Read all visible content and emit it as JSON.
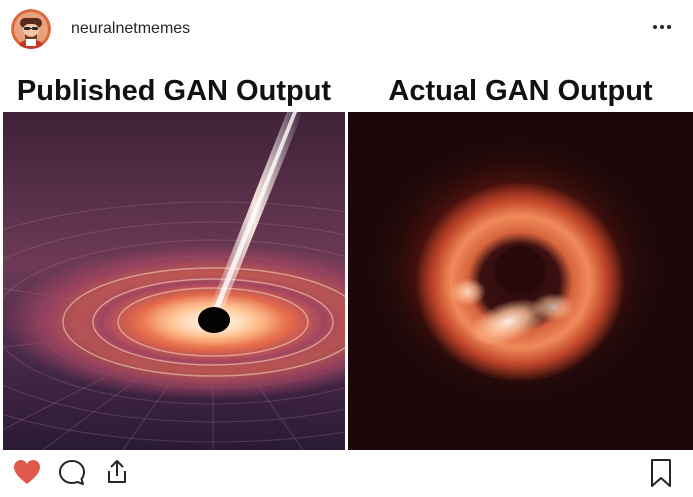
{
  "post": {
    "username": "neuralnetmemes"
  },
  "meme": {
    "left_caption": "Published GAN Output",
    "right_caption": "Actual GAN Output"
  },
  "icons": {
    "like": "heart-icon",
    "comment": "comment-icon",
    "share": "share-icon",
    "save": "bookmark-icon",
    "more": "more-options-icon"
  },
  "colors": {
    "like_active": "#ed4956",
    "text": "#262626"
  }
}
